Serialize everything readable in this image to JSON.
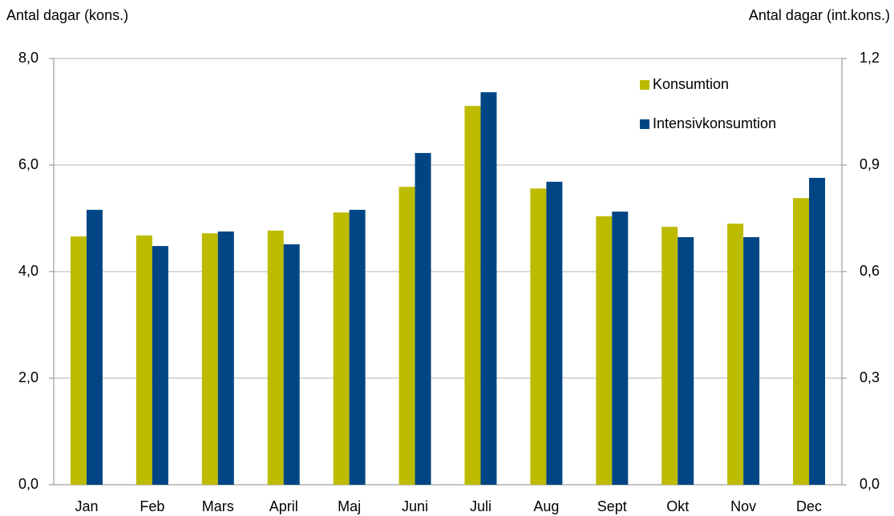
{
  "chart_data": {
    "type": "bar",
    "y_label": "Antal dagar (kons.)",
    "y2_label": "Antal dagar (int.kons.)",
    "categories": [
      "Jan",
      "Feb",
      "Mars",
      "April",
      "Maj",
      "Juni",
      "Juli",
      "Aug",
      "Sept",
      "Okt",
      "Nov",
      "Dec"
    ],
    "series": [
      {
        "name": "Konsumtion",
        "color": "#bdbb00",
        "values": [
          4.66,
          4.68,
          4.72,
          4.77,
          5.11,
          5.59,
          7.11,
          5.56,
          5.04,
          4.84,
          4.9,
          5.38
        ]
      },
      {
        "name": "Intensivkonsumtion",
        "color": "#004684",
        "axis": "y2",
        "values": [
          0.774,
          0.672,
          0.713,
          0.677,
          0.774,
          0.934,
          1.105,
          0.853,
          0.769,
          0.697,
          0.697,
          0.864
        ]
      }
    ],
    "ylim": [
      0,
      8
    ],
    "yticks": [
      {
        "value": 0,
        "label": "0,0"
      },
      {
        "value": 2,
        "label": "2,0"
      },
      {
        "value": 4,
        "label": "4,0"
      },
      {
        "value": 6,
        "label": "6,0"
      },
      {
        "value": 8,
        "label": "8,0"
      }
    ],
    "y2lim": [
      0,
      1.2
    ],
    "y2ticks": [
      {
        "value": 0,
        "label": "0,0"
      },
      {
        "value": 0.3,
        "label": "0,3"
      },
      {
        "value": 0.6,
        "label": "0,6"
      },
      {
        "value": 0.9,
        "label": "0,9"
      },
      {
        "value": 1.2,
        "label": "1,2"
      }
    ],
    "grid": true,
    "legend": "upper right"
  }
}
